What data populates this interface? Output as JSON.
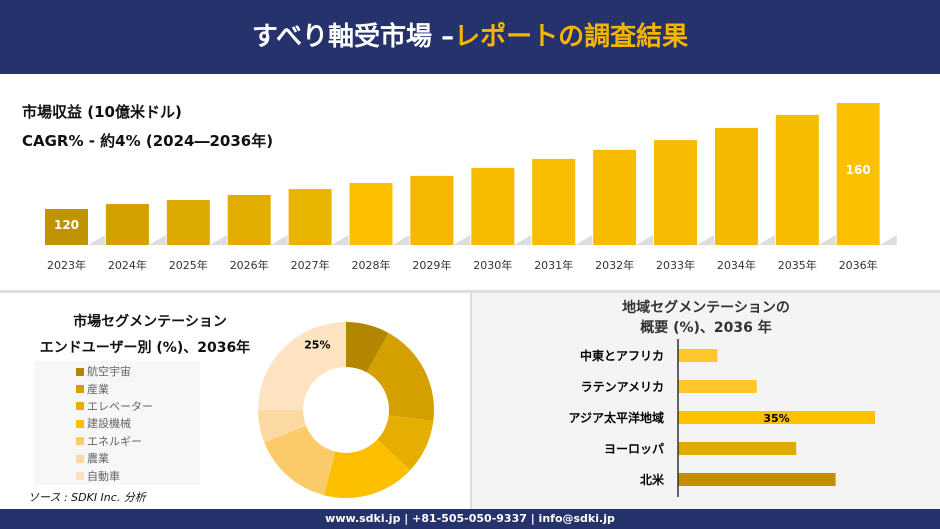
{
  "header": {
    "title_main": "すべり軸受市場 –",
    "title_highlight": "レポートの調査結果"
  },
  "revenue": {
    "label": "市場収益 (10億米ドル)",
    "cagr": "CAGR% - 約4% (2024―2036年)"
  },
  "chart_data": [
    {
      "type": "bar",
      "title": "",
      "categories": [
        "2023年",
        "2024年",
        "2025年",
        "2026年",
        "2027年",
        "2028年",
        "2029年",
        "2030年",
        "2031年",
        "2032年",
        "2033年",
        "2034年",
        "2035年",
        "2036年"
      ],
      "values": [
        120,
        121.9,
        123.4,
        125.3,
        127.5,
        129.8,
        132.5,
        135.5,
        138.9,
        142.3,
        146.0,
        150.6,
        155.5,
        160
      ],
      "data_labels": {
        "0": "120",
        "13": "160"
      },
      "colors": [
        "#c19300",
        "#d4a000",
        "#dcaa00",
        "#e2ad00",
        "#e8b400",
        "#fdc000",
        "#f5b800",
        "#f7bb00",
        "#f8bd00",
        "#f7bc00",
        "#f6bb00",
        "#f5ba00",
        "#f7bb00",
        "#fbc000"
      ]
    },
    {
      "type": "pie",
      "title": "市場セグメンテーション",
      "subtitle": "エンドユーザー別 (%)、2036年",
      "categories": [
        "航空宇宙",
        "産業",
        "エレベーター",
        "建設機械",
        "エネルギー",
        "農業",
        "自動車"
      ],
      "values": [
        8,
        19,
        10,
        17,
        15,
        6,
        25
      ],
      "data_labels": {
        "6": "25%"
      },
      "colors": [
        "#b38600",
        "#d4a000",
        "#e6ae00",
        "#fbbf00",
        "#fbcb6a",
        "#fcd9a0",
        "#fde3c0"
      ],
      "legend": "left"
    },
    {
      "type": "bar",
      "orientation": "horizontal",
      "title": "地域セグメンテーションの",
      "subtitle": "概要 (%)、2036 年",
      "categories": [
        "中東とアフリカ",
        "ラテンアメリカ",
        "アジア太平洋地域",
        "ヨーロッパ",
        "北米"
      ],
      "values": [
        7,
        14,
        35,
        21,
        28
      ],
      "data_labels": {
        "2": "35%"
      },
      "colors": [
        "#ffc72c",
        "#ffc72c",
        "#ffc000",
        "#e0aa00",
        "#bf8f00"
      ]
    }
  ],
  "source": "ソース : SDKI Inc. 分析",
  "footer": "www.sdki.jp | +81-505-050-9337 | info@sdki.jp"
}
